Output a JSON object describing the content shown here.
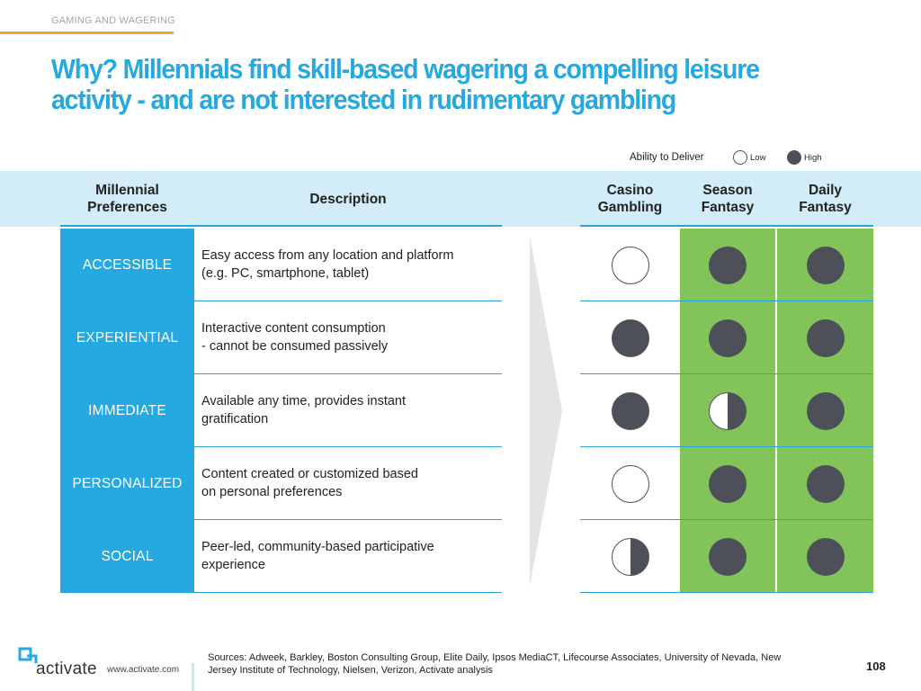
{
  "section": "GAMING AND WAGERING",
  "title": "Why? Millennials find skill-based wagering a compelling leisure\nactivity - and are not interested in rudimentary gambling",
  "legend": {
    "label": "Ability to Deliver",
    "low": "Low",
    "high": "High"
  },
  "headers": {
    "preferences": "Millennial\nPreferences",
    "description": "Description",
    "casino": "Casino\nGambling",
    "season": "Season\nFantasy",
    "daily": "Daily\nFantasy"
  },
  "rows": [
    {
      "preference": "ACCESSIBLE",
      "description": "Easy access from any location and platform\n(e.g. PC, smartphone, tablet)",
      "casino": "low",
      "season": "high",
      "daily": "high"
    },
    {
      "preference": "EXPERIENTIAL",
      "description": "Interactive content consumption\n- cannot be consumed passively",
      "casino": "high",
      "season": "high",
      "daily": "high"
    },
    {
      "preference": "IMMEDIATE",
      "description": "Available any time, provides instant\ngratification",
      "casino": "high",
      "season": "half",
      "daily": "high"
    },
    {
      "preference": "PERSONALIZED",
      "description": "Content created or customized based\non personal preferences",
      "casino": "low",
      "season": "high",
      "daily": "high"
    },
    {
      "preference": "SOCIAL",
      "description": "Peer-led, community-based participative\nexperience",
      "casino": "half",
      "season": "high",
      "daily": "high"
    }
  ],
  "footer": {
    "brand": "activate",
    "website": "www.activate.com",
    "sources": "Sources: Adweek, Barkley, Boston Consulting Group, Elite Daily, Ipsos MediaCT, Lifecourse Associates, University of Nevada, New\nJersey Institute of Technology, Nielsen, Verizon, Activate analysis",
    "page_number": "108"
  },
  "colors": {
    "accent": "#25a9e0",
    "green": "#82c45a",
    "dot": "#4d5058",
    "header_band": "#d2ecf8",
    "rule": "#f2a33a"
  }
}
